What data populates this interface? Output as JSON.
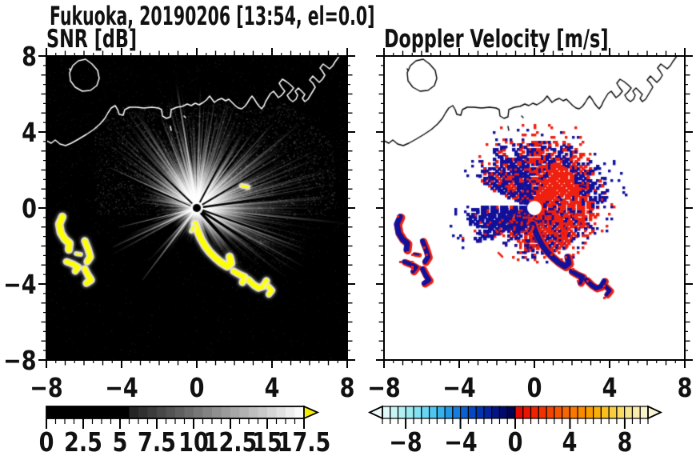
{
  "header": {
    "title": "Fukuoka, 20190206 [13:54, el=0.0]"
  },
  "panels": [
    {
      "id": "snr",
      "title": "SNR [dB]"
    },
    {
      "id": "vel",
      "title": "Doppler Velocity [m/s]"
    }
  ],
  "axes": {
    "xlim": [
      -8,
      8
    ],
    "ylim": [
      -8,
      8
    ],
    "x_tick_labels": [
      "−8",
      "−4",
      "0",
      "4",
      "8"
    ],
    "x_tick_values": [
      -8,
      -4,
      0,
      4,
      8
    ],
    "y_tick_labels": [
      "8",
      "4",
      "0",
      "−4",
      "−8"
    ],
    "y_tick_values": [
      8,
      4,
      0,
      -4,
      -8
    ],
    "minor_tick_step": 0.5
  },
  "colorbars": [
    {
      "for": "SNR [dB]",
      "min": 0,
      "max": 17.5,
      "blocks": 28,
      "black_until": 5,
      "tick_labels": [
        "0",
        "2.5",
        "5",
        "7.5",
        "10",
        "12.5",
        "15",
        "17.5"
      ],
      "tick_values": [
        0,
        2.5,
        5,
        7.5,
        10,
        12.5,
        15,
        17.5
      ],
      "style": "grayscale",
      "overflow_arrow_color": "#f6ee00"
    },
    {
      "for": "Doppler Velocity [m/s]",
      "min": -9.7,
      "max": 9.7,
      "tick_labels": [
        "−8",
        "−4",
        "0",
        "4",
        "8"
      ],
      "tick_values": [
        -8,
        -4,
        0,
        4,
        8
      ],
      "under_arrow_color": "#eefafa",
      "over_arrow_color": "#f9f5d8",
      "colors": [
        "#dff8f8",
        "#c9f4f6",
        "#b2f0f4",
        "#9aeaf2",
        "#81e2f2",
        "#67d6f2",
        "#4dc6f0",
        "#35b2ec",
        "#2399e6",
        "#167ddc",
        "#0b61d0",
        "#0449c2",
        "#0136b2",
        "#00259e",
        "#001688",
        "#000a6e",
        "#000450",
        "#e30b00",
        "#e91500",
        "#ee2300",
        "#f23300",
        "#f44400",
        "#f65500",
        "#f76600",
        "#f87800",
        "#f98a00",
        "#f99c00",
        "#f9ae08",
        "#f9bf1e",
        "#f9cd3e",
        "#f9da62",
        "#f9e489",
        "#f9ecac",
        "#f9f2cb"
      ]
    }
  ],
  "echo_colors": {
    "snr_background": "#000000",
    "snr_coastline": "#ffffff",
    "snr_overflow": "#ffff00",
    "vel_background": "#ffffff",
    "vel_coastline": "#000000",
    "vel_negative": "#11119b",
    "vel_positive": "#ee2010"
  },
  "chart_data": [
    {
      "type": "heatmap",
      "suptitle": "Fukuoka, 20190206 [13:54, el=0.0]",
      "title": "SNR [dB]",
      "xlim": [
        -8,
        8
      ],
      "ylim": [
        -8,
        8
      ],
      "xticks": [
        -8,
        -4,
        0,
        4,
        8
      ],
      "yticks": [
        8,
        4,
        0,
        -4,
        -8
      ],
      "colorbar_range": [
        0,
        17.5
      ],
      "colorbar_ticks": [
        0,
        2.5,
        5,
        7.5,
        10,
        12.5,
        15,
        17.5
      ],
      "units": "dB",
      "description": "Radar PPI image of signal-to-noise ratio on a black background: grayscale beams radiate from the radar at the origin, brightest toward the north/northeast; saturated yellow (>17.5 dB) arcs curve southeast of the radar and form isolated patches near x=-7..-5, y=-0.5..-4; Hakata Bay coastline and harbor piers drawn in white across the upper third, with an island outline near (-6, 7)."
    },
    {
      "type": "heatmap",
      "title": "Doppler Velocity [m/s]",
      "xlim": [
        -8,
        8
      ],
      "ylim": [
        -8,
        8
      ],
      "xticks": [
        -8,
        -4,
        0,
        4,
        8
      ],
      "yticks": [
        8,
        4,
        0,
        -4,
        -8
      ],
      "colorbar_range": [
        -10,
        10
      ],
      "colorbar_ticks": [
        -8,
        -4,
        0,
        4,
        8
      ],
      "units": "m/s",
      "description": "Radar PPI image of Doppler velocity on a white background: patchy echo around the radar origin mixing strongly negative (dark blue, approaching) and positive (red, receding) velocities; blue dominates the northwest fan and a wedge pointing west, red dominates the core and south side; the same coastline drawn in black; small blue/red echo patches near x=-7..-5, y=-0.5..-4 and a chain southeast of the radar."
    }
  ]
}
